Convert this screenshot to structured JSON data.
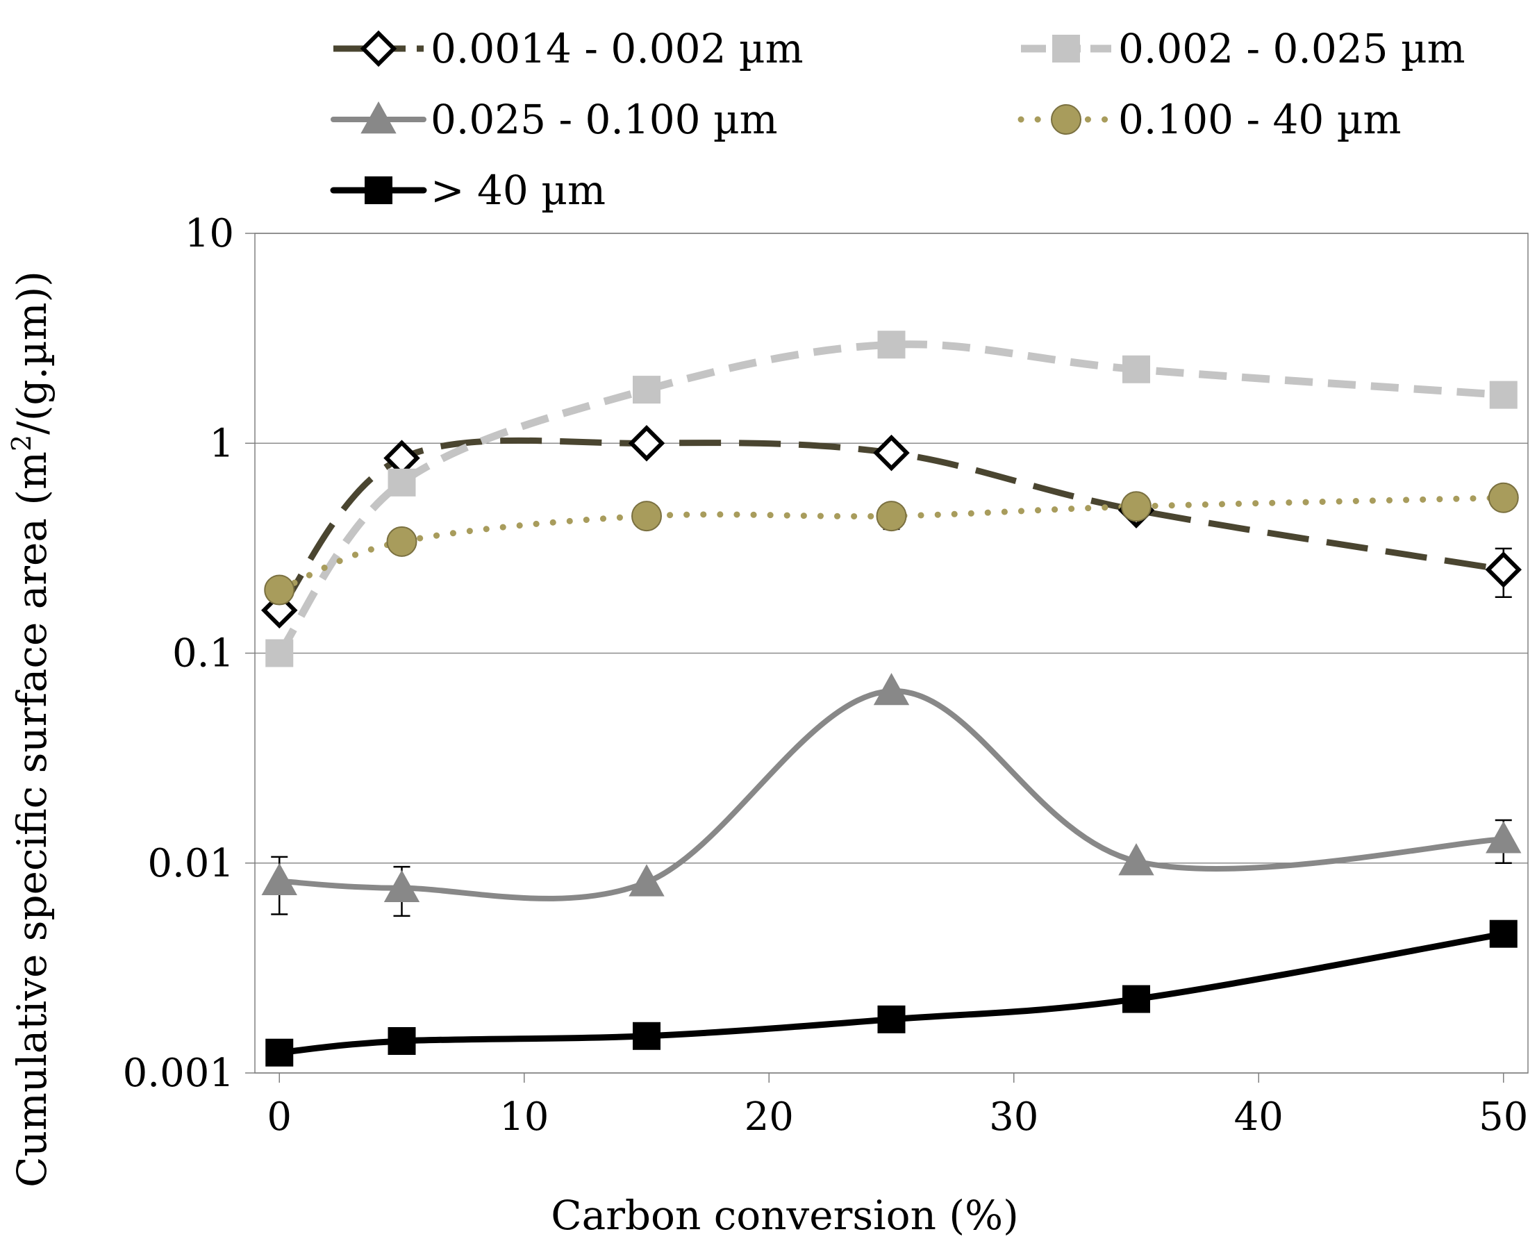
{
  "chart_data": {
    "type": "line",
    "title": "",
    "xlabel": "Carbon conversion (%)",
    "ylabel": {
      "main": "Cumulative specific surface area (m",
      "sup": "2",
      "tail": "/(g.µm))"
    },
    "xlim": [
      -1,
      51
    ],
    "ylim": [
      0.001,
      10
    ],
    "yscale": "log",
    "x_ticks": [
      0,
      10,
      20,
      30,
      40,
      50
    ],
    "x_tick_labels": [
      "0",
      "10",
      "20",
      "30",
      "40",
      "50"
    ],
    "y_ticks": [
      0.001,
      0.01,
      0.1,
      1,
      10
    ],
    "y_tick_labels": [
      "0.001",
      "0.01",
      "0.1",
      "1",
      "10"
    ],
    "grid": "horizontal",
    "legend_position": "top",
    "series": [
      {
        "name": "0.0014 - 0.002 µm",
        "x": [
          0,
          5,
          15,
          25,
          35,
          50
        ],
        "values": [
          0.16,
          0.85,
          1.0,
          0.9,
          0.48,
          0.25
        ],
        "errors": [
          null,
          null,
          null,
          null,
          null,
          0.065
        ],
        "color": "#4a4530",
        "marker": "diamond-open",
        "line": "long-dash"
      },
      {
        "name": "0.002 - 0.025 µm",
        "x": [
          0,
          5,
          15,
          25,
          35,
          50
        ],
        "values": [
          0.1,
          0.65,
          1.8,
          2.95,
          2.25,
          1.7
        ],
        "errors": [
          null,
          null,
          null,
          null,
          null,
          null
        ],
        "color": "#c4c4c4",
        "marker": "square",
        "line": "dash"
      },
      {
        "name": "0.025 - 0.100 µm",
        "x": [
          0,
          5,
          15,
          25,
          35,
          50
        ],
        "values": [
          0.0082,
          0.0076,
          0.0081,
          0.066,
          0.0102,
          0.013
        ],
        "errors": [
          0.0025,
          0.002,
          null,
          null,
          null,
          0.003
        ],
        "color": "#888888",
        "marker": "triangle",
        "line": "solid"
      },
      {
        "name": "0.100 - 40 µm",
        "x": [
          0,
          5,
          15,
          25,
          35,
          50
        ],
        "values": [
          0.2,
          0.34,
          0.45,
          0.45,
          0.5,
          0.55
        ],
        "errors": [
          null,
          null,
          null,
          0.06,
          null,
          null
        ],
        "color": "#a89c5c",
        "marker": "circle",
        "line": "dotted"
      },
      {
        "name": "> 40 µm",
        "x": [
          0,
          5,
          15,
          25,
          35,
          50
        ],
        "values": [
          0.00125,
          0.00142,
          0.0015,
          0.0018,
          0.00225,
          0.0046
        ],
        "errors": [
          null,
          null,
          null,
          null,
          null,
          null
        ],
        "color": "#000000",
        "marker": "square",
        "line": "solid"
      }
    ]
  }
}
